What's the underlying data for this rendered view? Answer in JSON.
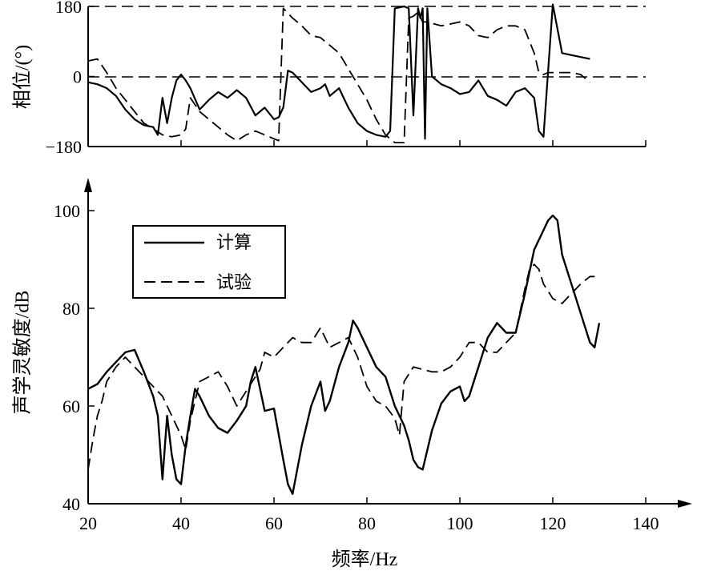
{
  "chart_data": [
    {
      "type": "line",
      "ylabel": "相位/(°)",
      "xlim": [
        20,
        140
      ],
      "ylim": [
        -180,
        180
      ],
      "yticks": [
        -180,
        0,
        180
      ],
      "ytick_labels": [
        "−180",
        "0",
        "180"
      ],
      "reference_lines": [
        180,
        0
      ],
      "series": [
        {
          "name": "计算",
          "style": "solid",
          "x": [
            20,
            22,
            24,
            26,
            28,
            30,
            32,
            34,
            35,
            36,
            37,
            38,
            39,
            40,
            41,
            42,
            44,
            46,
            48,
            50,
            52,
            54,
            56,
            58,
            60,
            61,
            62,
            63,
            64,
            66,
            68,
            70,
            71,
            72,
            74,
            76,
            78,
            80,
            82,
            84,
            85,
            86,
            88,
            89,
            90,
            91,
            91.5,
            92,
            92.5,
            93,
            94,
            96,
            98,
            100,
            102,
            104,
            106,
            108,
            110,
            112,
            114,
            116,
            117,
            118,
            120,
            122,
            124,
            126,
            128
          ],
          "y": [
            -15,
            -20,
            -30,
            -50,
            -85,
            -110,
            -125,
            -130,
            -150,
            -55,
            -120,
            -55,
            -10,
            5,
            -10,
            -30,
            -85,
            -60,
            -40,
            -55,
            -35,
            -55,
            -100,
            -80,
            -110,
            -105,
            -80,
            15,
            10,
            -15,
            -40,
            -30,
            -20,
            -50,
            -30,
            -80,
            -120,
            -140,
            -150,
            -155,
            -140,
            175,
            180,
            175,
            -100,
            175,
            150,
            175,
            -160,
            175,
            0,
            -20,
            -30,
            -45,
            -40,
            -10,
            -50,
            -60,
            -75,
            -40,
            -30,
            -55,
            -140,
            -155,
            185,
            60,
            55,
            50,
            45
          ]
        },
        {
          "name": "试验",
          "style": "dashed",
          "x": [
            20,
            22,
            24,
            26,
            28,
            30,
            32,
            34,
            36,
            38,
            40,
            41,
            42,
            44,
            46,
            48,
            50,
            52,
            54,
            56,
            58,
            60,
            61,
            62,
            64,
            66,
            68,
            70,
            72,
            74,
            76,
            78,
            80,
            82,
            84,
            86,
            88,
            89,
            90,
            91,
            92,
            93,
            96,
            98,
            100,
            102,
            104,
            106,
            108,
            110,
            112,
            114,
            115,
            116,
            117,
            118,
            119,
            120,
            122,
            124,
            126,
            128
          ],
          "y": [
            40,
            45,
            10,
            -30,
            -60,
            -90,
            -120,
            -135,
            -150,
            -155,
            -150,
            -135,
            -55,
            -90,
            -110,
            -130,
            -150,
            -165,
            -150,
            -140,
            -150,
            -160,
            -165,
            175,
            150,
            130,
            105,
            100,
            80,
            60,
            20,
            -20,
            -60,
            -110,
            -150,
            -170,
            -170,
            150,
            155,
            165,
            140,
            140,
            130,
            135,
            140,
            130,
            105,
            100,
            120,
            130,
            130,
            120,
            90,
            60,
            10,
            5,
            10,
            10,
            10,
            10,
            5,
            -15
          ]
        }
      ]
    },
    {
      "type": "line",
      "xlabel": "频率/Hz",
      "ylabel": "声学灵敏度/dB",
      "xlim": [
        20,
        140
      ],
      "ylim": [
        40,
        100
      ],
      "xticks": [
        20,
        40,
        60,
        80,
        100,
        120,
        140
      ],
      "yticks": [
        40,
        60,
        80,
        100
      ],
      "legend": "top-left",
      "series": [
        {
          "name": "计算",
          "style": "solid",
          "x": [
            20,
            22,
            24,
            26,
            28,
            30,
            32,
            34,
            35,
            36,
            37,
            38,
            39,
            40,
            41,
            42,
            43,
            44,
            46,
            48,
            50,
            52,
            54,
            55,
            56,
            58,
            60,
            62,
            63,
            64,
            66,
            68,
            70,
            71,
            72,
            74,
            76,
            77,
            78,
            80,
            82,
            84,
            86,
            88,
            89,
            90,
            91,
            92,
            94,
            96,
            98,
            100,
            101,
            102,
            104,
            106,
            108,
            110,
            112,
            114,
            116,
            118,
            119,
            120,
            121,
            122,
            124,
            126,
            128,
            129,
            130
          ],
          "y": [
            63.5,
            64.5,
            67,
            69,
            71,
            71.5,
            67,
            62,
            58,
            45,
            58,
            50,
            45,
            44,
            52,
            58,
            63.5,
            62,
            58,
            55.5,
            54.5,
            57,
            60,
            65,
            68,
            59,
            59.5,
            49,
            44,
            42,
            52,
            60,
            65,
            59,
            61,
            68,
            73,
            77.5,
            76,
            72,
            68,
            66,
            60,
            56,
            53,
            49,
            47.5,
            47,
            55,
            60.5,
            63,
            64,
            61,
            62,
            68,
            74,
            77,
            75,
            75,
            83,
            92,
            96,
            98,
            99,
            98,
            91,
            85,
            79,
            73,
            72,
            77
          ]
        },
        {
          "name": "试验",
          "style": "dashed",
          "x": [
            20,
            21,
            22,
            23,
            24,
            26,
            28,
            30,
            32,
            34,
            36,
            38,
            40,
            41,
            42,
            44,
            46,
            48,
            50,
            52,
            54,
            56,
            57,
            58,
            60,
            62,
            64,
            66,
            68,
            70,
            72,
            74,
            76,
            78,
            80,
            82,
            84,
            86,
            87,
            88,
            90,
            92,
            94,
            96,
            98,
            100,
            102,
            104,
            106,
            108,
            110,
            112,
            114,
            115,
            116,
            117,
            118,
            120,
            122,
            124,
            126,
            128,
            130
          ],
          "y": [
            47,
            53,
            58,
            61,
            65,
            68,
            70,
            68,
            66,
            64,
            62,
            58,
            54,
            51,
            57,
            65,
            66,
            67,
            64,
            60,
            63,
            66,
            67.5,
            71,
            70,
            72,
            74,
            73,
            73,
            76,
            72,
            73,
            74,
            70,
            64,
            61,
            60,
            57.5,
            54,
            65,
            68,
            67.5,
            67,
            67,
            68,
            70,
            73,
            73,
            71,
            71,
            73,
            75,
            84,
            88,
            89,
            88,
            85,
            82,
            81,
            83,
            85,
            86.5,
            86.5
          ]
        }
      ]
    }
  ]
}
